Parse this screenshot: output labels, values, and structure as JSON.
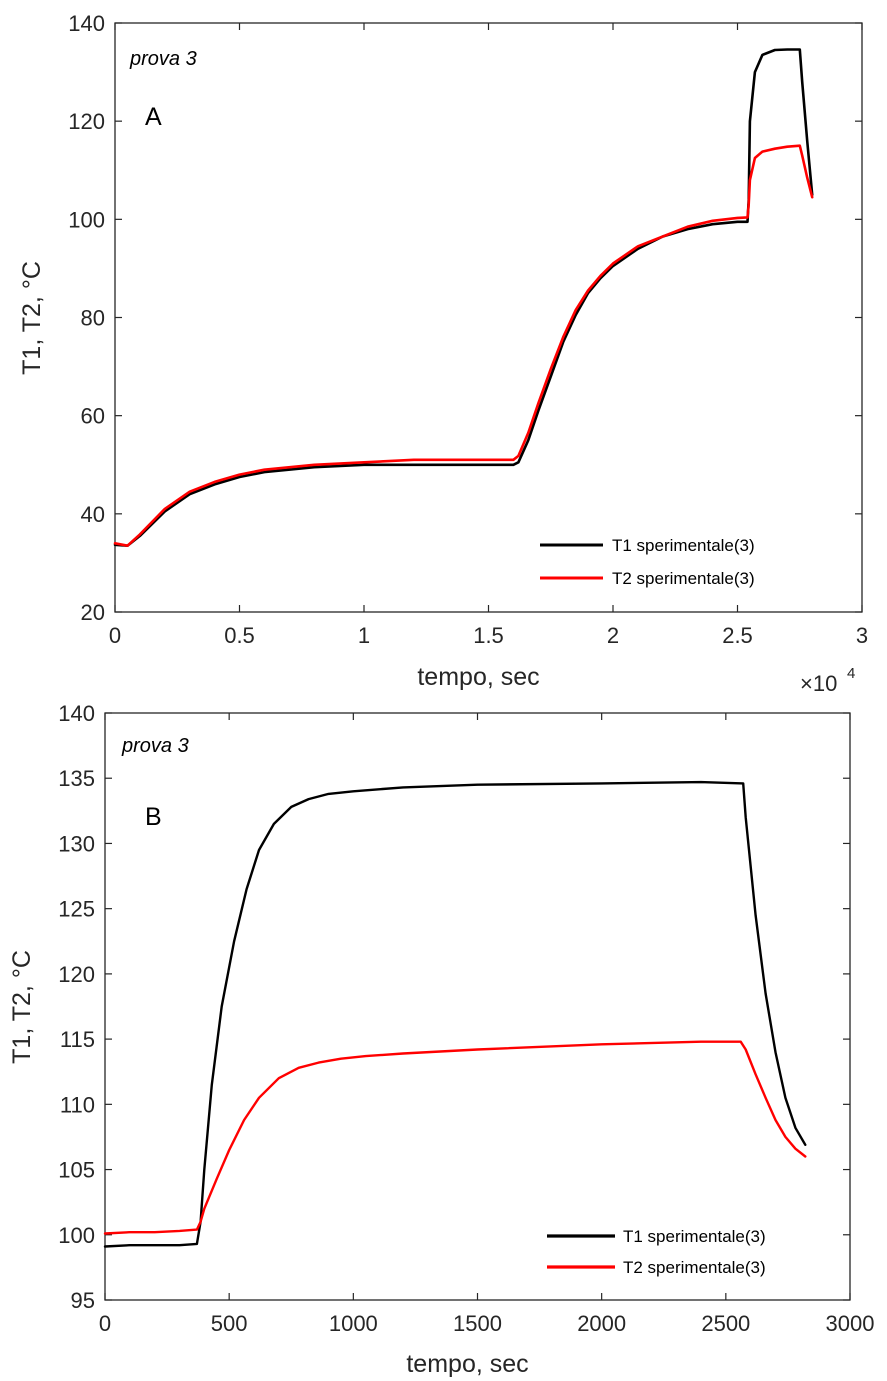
{
  "chart_data": [
    {
      "type": "line",
      "panel_label": "A",
      "annotation": "prova 3",
      "xlabel": "tempo, sec",
      "ylabel": "T1, T2, °C",
      "x_exponent_base": "×10",
      "x_exponent_power": "4",
      "xlim": [
        0,
        3
      ],
      "ylim": [
        20,
        140
      ],
      "xticks": [
        "0",
        "0.5",
        "1",
        "1.5",
        "2",
        "2.5",
        "3"
      ],
      "yticks": [
        "20",
        "40",
        "60",
        "80",
        "100",
        "120",
        "140"
      ],
      "legend_position": "bottom-right",
      "series": [
        {
          "name": "T1 sperimentale(3)",
          "color": "#000000",
          "x": [
            0,
            0.05,
            0.1,
            0.2,
            0.3,
            0.4,
            0.5,
            0.6,
            0.8,
            1.0,
            1.2,
            1.4,
            1.6,
            1.62,
            1.66,
            1.7,
            1.75,
            1.8,
            1.85,
            1.9,
            1.95,
            2.0,
            2.1,
            2.2,
            2.3,
            2.4,
            2.5,
            2.54,
            2.545,
            2.55,
            2.57,
            2.6,
            2.65,
            2.7,
            2.75,
            2.76,
            2.78,
            2.8
          ],
          "y": [
            33.7,
            33.5,
            35.5,
            40.5,
            44.0,
            46.0,
            47.5,
            48.5,
            49.5,
            50.0,
            50.0,
            50.0,
            50.0,
            50.5,
            55.0,
            61.0,
            68.0,
            75.0,
            80.5,
            85.0,
            88.0,
            90.5,
            94.0,
            96.5,
            98.0,
            99.0,
            99.5,
            99.5,
            104.0,
            120.0,
            130.0,
            133.5,
            134.5,
            134.6,
            134.6,
            128.0,
            116.0,
            105.0
          ]
        },
        {
          "name": "T2 sperimentale(3)",
          "color": "#ff0000",
          "x": [
            0,
            0.05,
            0.1,
            0.2,
            0.3,
            0.4,
            0.5,
            0.6,
            0.8,
            1.0,
            1.2,
            1.4,
            1.6,
            1.62,
            1.66,
            1.7,
            1.75,
            1.8,
            1.85,
            1.9,
            1.95,
            2.0,
            2.1,
            2.2,
            2.3,
            2.4,
            2.5,
            2.54,
            2.545,
            2.55,
            2.57,
            2.6,
            2.65,
            2.7,
            2.75,
            2.76,
            2.78,
            2.8
          ],
          "y": [
            34.0,
            33.5,
            35.8,
            41.0,
            44.5,
            46.5,
            48.0,
            49.0,
            50.0,
            50.5,
            51.0,
            51.0,
            51.0,
            51.8,
            56.5,
            62.5,
            69.5,
            76.0,
            81.5,
            85.5,
            88.5,
            91.0,
            94.5,
            96.5,
            98.5,
            99.7,
            100.3,
            100.4,
            103.0,
            108.0,
            112.5,
            113.8,
            114.4,
            114.8,
            115.0,
            113.0,
            108.5,
            104.5
          ]
        }
      ]
    },
    {
      "type": "line",
      "panel_label": "B",
      "annotation": "prova 3",
      "xlabel": "tempo, sec",
      "ylabel": "T1, T2, °C",
      "xlim": [
        0,
        3000
      ],
      "ylim": [
        95,
        140
      ],
      "xticks": [
        "0",
        "500",
        "1000",
        "1500",
        "2000",
        "2500",
        "3000"
      ],
      "yticks": [
        "95",
        "100",
        "105",
        "110",
        "115",
        "120",
        "125",
        "130",
        "135",
        "140"
      ],
      "legend_position": "bottom-right",
      "series": [
        {
          "name": "T1 sperimentale(3)",
          "color": "#000000",
          "x": [
            0,
            100,
            200,
            300,
            370,
            385,
            400,
            430,
            470,
            520,
            570,
            620,
            680,
            750,
            820,
            900,
            1000,
            1200,
            1500,
            2000,
            2400,
            2570,
            2580,
            2620,
            2660,
            2700,
            2740,
            2780,
            2820
          ],
          "y": [
            99.1,
            99.2,
            99.2,
            99.2,
            99.3,
            101.0,
            105.0,
            111.5,
            117.5,
            122.5,
            126.5,
            129.5,
            131.5,
            132.8,
            133.4,
            133.8,
            134.0,
            134.3,
            134.5,
            134.6,
            134.7,
            134.6,
            132.0,
            124.5,
            118.5,
            114.0,
            110.5,
            108.2,
            106.9
          ]
        },
        {
          "name": "T2 sperimentale(3)",
          "color": "#ff0000",
          "x": [
            0,
            100,
            200,
            300,
            370,
            385,
            400,
            450,
            500,
            560,
            620,
            700,
            780,
            860,
            950,
            1050,
            1200,
            1500,
            2000,
            2400,
            2560,
            2580,
            2620,
            2660,
            2700,
            2740,
            2780,
            2820
          ],
          "y": [
            100.1,
            100.2,
            100.2,
            100.3,
            100.4,
            101.0,
            102.0,
            104.3,
            106.5,
            108.8,
            110.5,
            112.0,
            112.8,
            113.2,
            113.5,
            113.7,
            113.9,
            114.2,
            114.6,
            114.8,
            114.8,
            114.2,
            112.3,
            110.5,
            108.8,
            107.5,
            106.6,
            106.0
          ]
        }
      ]
    }
  ]
}
